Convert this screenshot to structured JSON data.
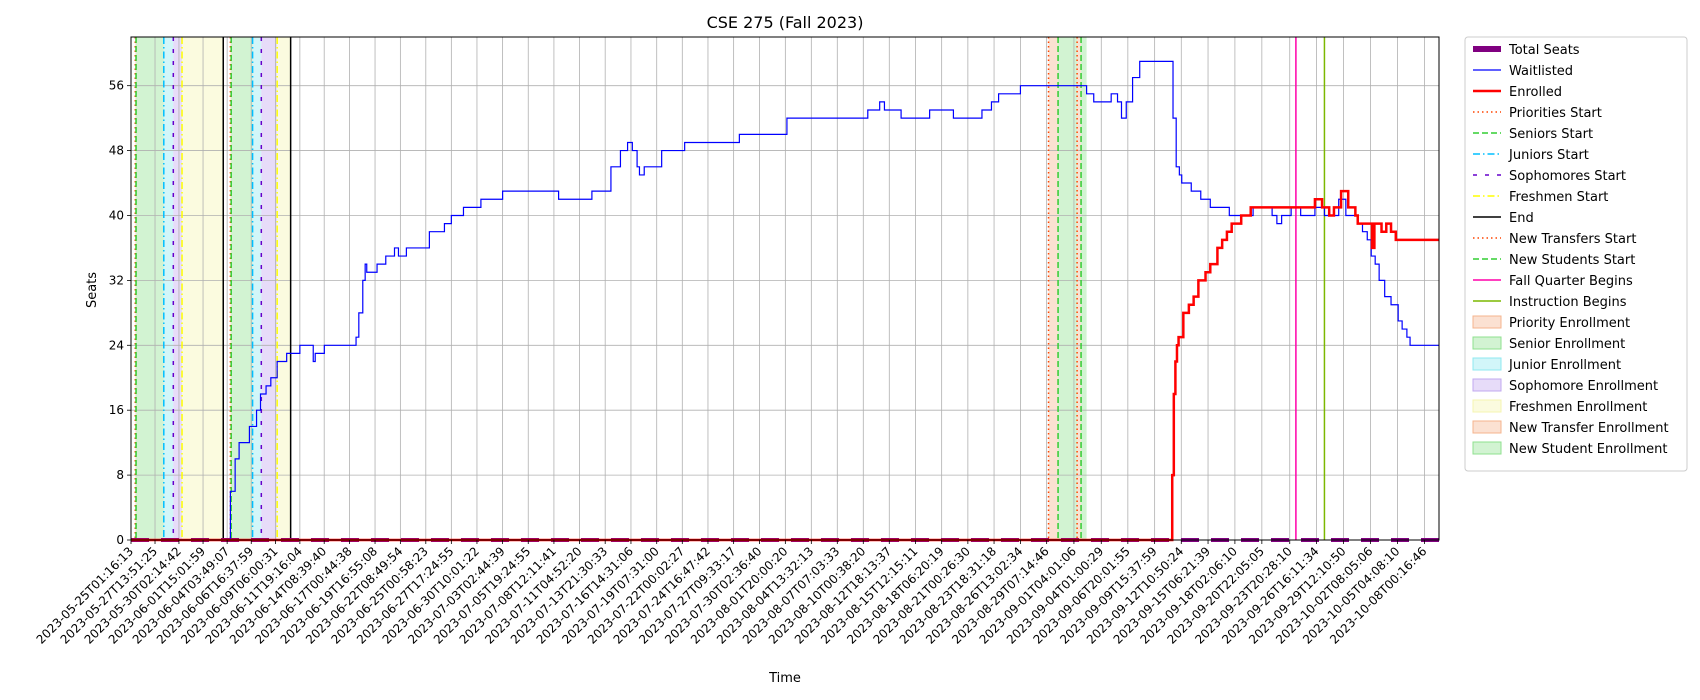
{
  "chart_data": {
    "type": "line",
    "title": "CSE 275 (Fall 2023)",
    "xlabel": "Time",
    "ylabel": "Seats",
    "xlim": [
      "2023-05-25T01:16:13",
      "2023-10-09T13:00:00"
    ],
    "ylim": [
      0,
      62
    ],
    "yticks": [
      0,
      8,
      16,
      24,
      32,
      40,
      48,
      56
    ],
    "grid": true,
    "legend_position": "outside-right",
    "xtick_labels": [
      "2023-05-25T01:16:13",
      "2023-05-27T13:51:25",
      "2023-05-30T02:14:42",
      "2023-06-01T15:01:59",
      "2023-06-04T03:49:07",
      "2023-06-06T16:37:59",
      "2023-06-09T06:00:31",
      "2023-06-11T19:16:04",
      "2023-06-14T08:39:40",
      "2023-06-17T00:44:38",
      "2023-06-19T16:55:08",
      "2023-06-22T08:49:54",
      "2023-06-25T00:58:23",
      "2023-06-27T17:24:55",
      "2023-06-30T10:01:22",
      "2023-07-03T02:44:39",
      "2023-07-05T19:24:55",
      "2023-07-08T12:11:41",
      "2023-07-11T04:52:20",
      "2023-07-13T21:30:33",
      "2023-07-16T14:31:06",
      "2023-07-19T07:31:00",
      "2023-07-22T00:02:27",
      "2023-07-24T16:47:42",
      "2023-07-27T09:33:17",
      "2023-07-30T02:36:40",
      "2023-08-01T20:00:20",
      "2023-08-04T13:32:13",
      "2023-08-07T07:03:33",
      "2023-08-10T00:38:20",
      "2023-08-12T18:13:37",
      "2023-08-15T12:15:11",
      "2023-08-18T06:20:19",
      "2023-08-21T00:26:30",
      "2023-08-23T18:31:18",
      "2023-08-26T13:02:34",
      "2023-08-29T07:14:46",
      "2023-09-01T04:01:06",
      "2023-09-04T01:00:29",
      "2023-09-06T20:01:55",
      "2023-09-09T15:37:59",
      "2023-09-12T10:50:24",
      "2023-09-15T06:21:39",
      "2023-09-18T02:06:10",
      "2023-09-20T22:05:05",
      "2023-09-23T20:28:10",
      "2023-09-26T16:11:34",
      "2023-09-29T12:10:50",
      "2023-10-02T08:05:06",
      "2023-10-05T04:08:10",
      "2023-10-08T00:16:46"
    ],
    "series": [
      {
        "name": "Total Seats",
        "color": "#800080",
        "style": "dashed-thick",
        "points": [
          [
            "2023-05-25T01:16:13",
            0
          ],
          [
            "2023-10-09T13:00:00",
            0
          ]
        ]
      },
      {
        "name": "Waitlisted",
        "color": "#0000ff",
        "style": "step",
        "points": [
          [
            "2023-05-25T01:16:13",
            0
          ],
          [
            "2023-06-04T03:49:07",
            0
          ],
          [
            "2023-06-04T12:00:00",
            6
          ],
          [
            "2023-06-05T00:00:00",
            10
          ],
          [
            "2023-06-05T10:00:00",
            12
          ],
          [
            "2023-06-06T12:00:00",
            14
          ],
          [
            "2023-06-07T06:00:00",
            16
          ],
          [
            "2023-06-07T16:00:00",
            18
          ],
          [
            "2023-06-08T06:00:00",
            19
          ],
          [
            "2023-06-08T18:00:00",
            20
          ],
          [
            "2023-06-09T10:00:00",
            22
          ],
          [
            "2023-06-10T10:00:00",
            23
          ],
          [
            "2023-06-11T19:16:04",
            24
          ],
          [
            "2023-06-13T05:00:00",
            22
          ],
          [
            "2023-06-13T10:00:00",
            23
          ],
          [
            "2023-06-14T09:00:00",
            24
          ],
          [
            "2023-06-17T17:00:00",
            25
          ],
          [
            "2023-06-18T00:00:00",
            28
          ],
          [
            "2023-06-18T10:00:00",
            32
          ],
          [
            "2023-06-18T16:00:00",
            34
          ],
          [
            "2023-06-18T20:00:00",
            33
          ],
          [
            "2023-06-19T22:00:00",
            34
          ],
          [
            "2023-06-20T20:00:00",
            35
          ],
          [
            "2023-06-21T18:00:00",
            36
          ],
          [
            "2023-06-22T04:00:00",
            35
          ],
          [
            "2023-06-23T00:00:00",
            36
          ],
          [
            "2023-06-25T10:00:00",
            38
          ],
          [
            "2023-06-27T00:00:00",
            39
          ],
          [
            "2023-06-27T17:24:55",
            40
          ],
          [
            "2023-06-29T00:00:00",
            41
          ],
          [
            "2023-06-30T20:00:00",
            42
          ],
          [
            "2023-07-03T02:44:39",
            43
          ],
          [
            "2023-07-09T00:00:00",
            42
          ],
          [
            "2023-07-12T12:00:00",
            43
          ],
          [
            "2023-07-14T12:00:00",
            46
          ],
          [
            "2023-07-15T12:00:00",
            48
          ],
          [
            "2023-07-16T06:00:00",
            49
          ],
          [
            "2023-07-16T18:00:00",
            48
          ],
          [
            "2023-07-17T06:00:00",
            46
          ],
          [
            "2023-07-17T12:00:00",
            45
          ],
          [
            "2023-07-18T00:00:00",
            46
          ],
          [
            "2023-07-19T20:00:00",
            48
          ],
          [
            "2023-07-22T06:00:00",
            49
          ],
          [
            "2023-07-28T00:00:00",
            50
          ],
          [
            "2023-08-02T00:00:00",
            52
          ],
          [
            "2023-08-10T12:00:00",
            53
          ],
          [
            "2023-08-11T18:00:00",
            54
          ],
          [
            "2023-08-12T06:00:00",
            53
          ],
          [
            "2023-08-14T00:00:00",
            52
          ],
          [
            "2023-08-17T00:00:00",
            53
          ],
          [
            "2023-08-19T12:00:00",
            52
          ],
          [
            "2023-08-22T12:00:00",
            53
          ],
          [
            "2023-08-23T12:00:00",
            54
          ],
          [
            "2023-08-24T06:00:00",
            55
          ],
          [
            "2023-08-26T13:02:34",
            56
          ],
          [
            "2023-09-02T12:00:00",
            55
          ],
          [
            "2023-09-03T06:00:00",
            54
          ],
          [
            "2023-09-05T02:00:00",
            55
          ],
          [
            "2023-09-05T18:00:00",
            54
          ],
          [
            "2023-09-06T04:00:00",
            52
          ],
          [
            "2023-09-06T16:00:00",
            54
          ],
          [
            "2023-09-07T08:00:00",
            57
          ],
          [
            "2023-09-08T02:00:00",
            59
          ],
          [
            "2023-09-11T10:00:00",
            59
          ],
          [
            "2023-09-11T14:00:00",
            52
          ],
          [
            "2023-09-11T22:00:00",
            46
          ],
          [
            "2023-09-12T06:00:00",
            45
          ],
          [
            "2023-09-12T12:00:00",
            44
          ],
          [
            "2023-09-13T12:00:00",
            43
          ],
          [
            "2023-09-14T12:00:00",
            42
          ],
          [
            "2023-09-15T12:00:00",
            41
          ],
          [
            "2023-09-17T12:00:00",
            40
          ],
          [
            "2023-09-20T00:00:00",
            41
          ],
          [
            "2023-09-22T00:00:00",
            40
          ],
          [
            "2023-09-22T12:00:00",
            39
          ],
          [
            "2023-09-23T00:00:00",
            40
          ],
          [
            "2023-09-24T00:00:00",
            41
          ],
          [
            "2023-09-25T00:00:00",
            40
          ],
          [
            "2023-09-26T12:00:00",
            41
          ],
          [
            "2023-09-27T12:00:00",
            40
          ],
          [
            "2023-09-29T00:00:00",
            42
          ],
          [
            "2023-09-29T18:00:00",
            40
          ],
          [
            "2023-10-01T00:00:00",
            39
          ],
          [
            "2023-10-01T12:00:00",
            38
          ],
          [
            "2023-10-02T00:00:00",
            37
          ],
          [
            "2023-10-02T10:00:00",
            35
          ],
          [
            "2023-10-02T20:00:00",
            34
          ],
          [
            "2023-10-03T06:00:00",
            32
          ],
          [
            "2023-10-03T20:00:00",
            30
          ],
          [
            "2023-10-04T12:00:00",
            29
          ],
          [
            "2023-10-05T06:00:00",
            27
          ],
          [
            "2023-10-05T16:00:00",
            26
          ],
          [
            "2023-10-06T04:00:00",
            25
          ],
          [
            "2023-10-06T12:00:00",
            24
          ],
          [
            "2023-10-09T13:00:00",
            24
          ]
        ]
      },
      {
        "name": "Enrolled",
        "color": "#ff0000",
        "style": "step-thick",
        "points": [
          [
            "2023-05-25T01:16:13",
            0
          ],
          [
            "2023-09-11T10:00:00",
            0
          ],
          [
            "2023-09-11T12:00:00",
            8
          ],
          [
            "2023-09-11T16:00:00",
            18
          ],
          [
            "2023-09-11T20:00:00",
            22
          ],
          [
            "2023-09-12T00:00:00",
            24
          ],
          [
            "2023-09-12T04:00:00",
            25
          ],
          [
            "2023-09-12T16:00:00",
            28
          ],
          [
            "2023-09-13T06:00:00",
            29
          ],
          [
            "2023-09-13T18:00:00",
            30
          ],
          [
            "2023-09-14T06:00:00",
            32
          ],
          [
            "2023-09-15T00:00:00",
            33
          ],
          [
            "2023-09-15T12:00:00",
            34
          ],
          [
            "2023-09-16T06:00:00",
            36
          ],
          [
            "2023-09-16T18:00:00",
            37
          ],
          [
            "2023-09-17T06:00:00",
            38
          ],
          [
            "2023-09-17T18:00:00",
            39
          ],
          [
            "2023-09-18T18:00:00",
            40
          ],
          [
            "2023-09-19T18:00:00",
            41
          ],
          [
            "2023-09-26T12:00:00",
            42
          ],
          [
            "2023-09-27T06:00:00",
            41
          ],
          [
            "2023-09-28T00:00:00",
            40
          ],
          [
            "2023-09-28T12:00:00",
            41
          ],
          [
            "2023-09-29T06:00:00",
            43
          ],
          [
            "2023-09-30T00:00:00",
            41
          ],
          [
            "2023-09-30T18:00:00",
            40
          ],
          [
            "2023-10-01T00:00:00",
            39
          ],
          [
            "2023-10-02T00:00:00",
            39
          ],
          [
            "2023-10-02T12:00:00",
            36
          ],
          [
            "2023-10-02T18:00:00",
            39
          ],
          [
            "2023-10-03T12:00:00",
            38
          ],
          [
            "2023-10-04T00:00:00",
            39
          ],
          [
            "2023-10-04T12:00:00",
            38
          ],
          [
            "2023-10-05T00:00:00",
            37
          ],
          [
            "2023-10-09T13:00:00",
            37
          ]
        ]
      }
    ],
    "vlines": [
      {
        "name": "Priorities Start",
        "color": "#ff4500",
        "style": "dotted",
        "x": [
          "2023-05-25T12:00:00",
          "2023-06-04T12:00:00"
        ]
      },
      {
        "name": "Seniors Start",
        "color": "#32cd32",
        "style": "dashed",
        "x": [
          "2023-05-25T14:00:00",
          "2023-06-04T14:00:00"
        ]
      },
      {
        "name": "Juniors Start",
        "color": "#00bfff",
        "style": "dashdot",
        "x": [
          "2023-05-28T12:00:00",
          "2023-06-06T20:00:00"
        ]
      },
      {
        "name": "Sophomores Start",
        "color": "#6600cc",
        "style": "loosedash",
        "x": [
          "2023-05-29T12:00:00",
          "2023-06-07T18:00:00"
        ]
      },
      {
        "name": "Freshmen Start",
        "color": "#ffff00",
        "style": "dashdot",
        "x": [
          "2023-05-30T10:00:00",
          "2023-06-09T10:00:00"
        ]
      },
      {
        "name": "End",
        "color": "#000000",
        "style": "solid",
        "x": [
          "2023-06-03T18:00:00",
          "2023-06-10T20:00:00"
        ]
      },
      {
        "name": "New Transfers Start",
        "color": "#ff4500",
        "style": "dotted",
        "x": [
          "2023-08-29T12:00:00",
          "2023-09-01T12:00:00"
        ]
      },
      {
        "name": "New Students Start",
        "color": "#32cd32",
        "style": "dashed",
        "x": [
          "2023-08-30T12:00:00",
          "2023-09-01T22:00:00"
        ]
      },
      {
        "name": "Fall Quarter Begins",
        "color": "#ff00aa",
        "style": "solid",
        "x": [
          "2023-09-24T12:00:00"
        ]
      },
      {
        "name": "Instruction Begins",
        "color": "#7cb800",
        "style": "solid",
        "x": [
          "2023-09-27T12:00:00"
        ]
      }
    ],
    "spans": [
      {
        "name": "Priority Enrollment",
        "color": "#f4b48e",
        "ranges": [
          [
            "2023-05-25T12:00:00",
            "2023-05-25T14:00:00"
          ],
          [
            "2023-06-04T12:00:00",
            "2023-06-04T14:00:00"
          ]
        ]
      },
      {
        "name": "Senior Enrollment",
        "color": "#8fe08f",
        "ranges": [
          [
            "2023-05-25T14:00:00",
            "2023-05-28T12:00:00"
          ],
          [
            "2023-06-04T14:00:00",
            "2023-06-06T20:00:00"
          ]
        ]
      },
      {
        "name": "Junior Enrollment",
        "color": "#8fe8f0",
        "ranges": [
          [
            "2023-05-28T12:00:00",
            "2023-05-29T12:00:00"
          ],
          [
            "2023-06-06T20:00:00",
            "2023-06-07T18:00:00"
          ]
        ]
      },
      {
        "name": "Sophomore Enrollment",
        "color": "#c2a8f0",
        "ranges": [
          [
            "2023-05-29T12:00:00",
            "2023-05-30T10:00:00"
          ],
          [
            "2023-06-07T18:00:00",
            "2023-06-09T10:00:00"
          ]
        ]
      },
      {
        "name": "Freshmen Enrollment",
        "color": "#f5f5b0",
        "ranges": [
          [
            "2023-05-30T10:00:00",
            "2023-06-03T18:00:00"
          ],
          [
            "2023-06-09T10:00:00",
            "2023-06-10T20:00:00"
          ]
        ]
      },
      {
        "name": "New Transfer Enrollment",
        "color": "#f4b48e",
        "ranges": [
          [
            "2023-08-29T12:00:00",
            "2023-08-30T12:00:00"
          ],
          [
            "2023-09-01T12:00:00",
            "2023-09-01T22:00:00"
          ]
        ]
      },
      {
        "name": "New Student Enrollment",
        "color": "#8fe08f",
        "ranges": [
          [
            "2023-08-30T12:00:00",
            "2023-09-01T12:00:00"
          ],
          [
            "2023-09-01T22:00:00",
            "2023-09-02T12:00:00"
          ]
        ]
      }
    ]
  }
}
